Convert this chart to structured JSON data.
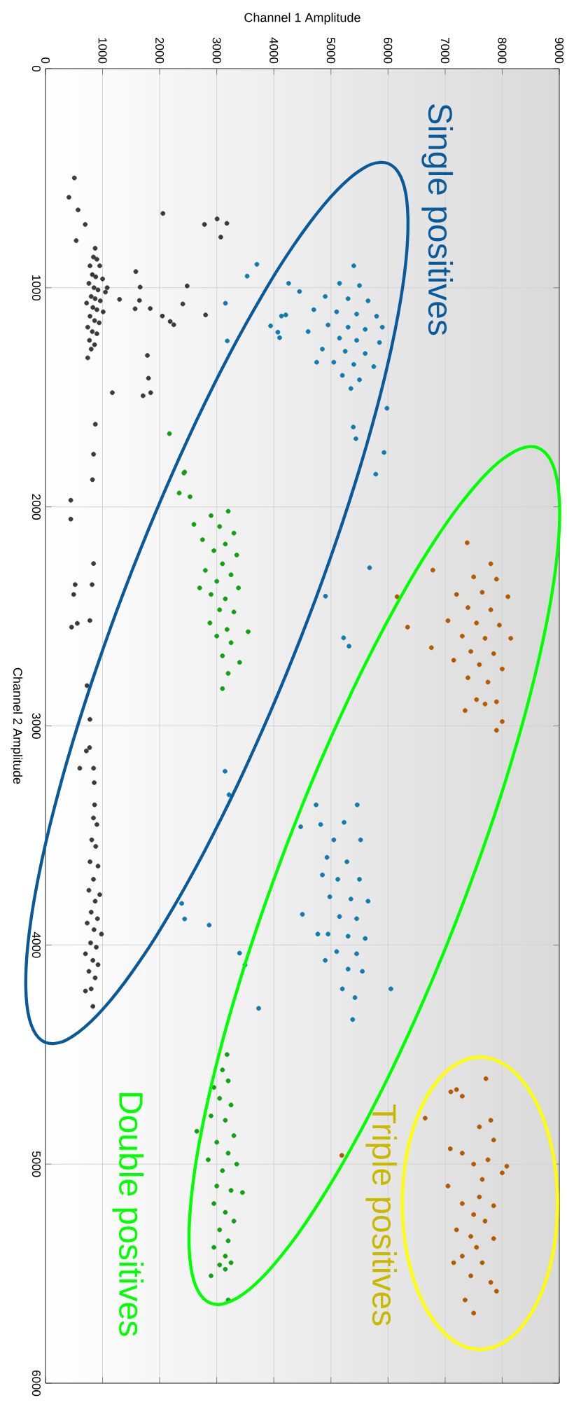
{
  "chart_data": {
    "type": "scatter",
    "xlabel": "Channel 1 Amplitude",
    "ylabel": "Channel 2 Amplitude",
    "annotations": [
      "Single positives",
      "Double positives",
      "Triple positives"
    ],
    "xlim": [
      0,
      9000
    ],
    "ylim": [
      6000,
      0
    ],
    "xticks": [
      0,
      1000,
      2000,
      3000,
      4000,
      5000,
      6000,
      7000,
      8000,
      9000
    ],
    "yticks": [
      0,
      1000,
      2000,
      3000,
      4000,
      5000,
      6000
    ],
    "grid": true,
    "series": [
      {
        "color": "#3a3a3a",
        "values": [
          499,
          587,
          645,
          711,
          785,
          661,
          711,
          686,
          706,
          769,
          926,
          997,
          992,
          1053,
          1058,
          1095,
          1096,
          1074,
          1124,
          1129,
          1154,
          1169,
          1309,
          1413,
          1479,
          1493,
          1479,
          1623,
          1760,
          1876,
          1970,
          2056,
          2259,
          2355,
          2400,
          2355,
          2549,
          2532,
          2519,
          2816,
          2970,
          3099,
          3114,
          3193,
          3193,
          3259,
          820,
          860,
          870,
          900,
          900,
          940,
          950,
          960,
          980,
          1000,
          1010,
          1020,
          1040,
          1050,
          1060,
          1070,
          1090,
          1100,
          1110,
          1130,
          1150,
          1160,
          1180,
          1200,
          1210,
          1240,
          1260,
          1280,
          1320,
          1000,
          3360,
          3420,
          3450,
          3520,
          3550,
          3620,
          3640,
          3700,
          3750,
          3770,
          3800,
          3850,
          3880,
          3900,
          3930,
          3950,
          3990,
          4010,
          4040,
          4070,
          4090,
          4120,
          4150,
          4200,
          4210,
          4280
        ],
        "x": [
          506,
          410,
          570,
          696,
          538,
          2057,
          2785,
          3006,
          3177,
          3070,
          1582,
          1658,
          2481,
          1297,
          1646,
          1835,
          1570,
          2405,
          2804,
          2047,
          2184,
          2247,
          1785,
          1804,
          1171,
          1709,
          1842,
          873,
          842,
          823,
          443,
          443,
          842,
          519,
          494,
          816,
          456,
          557,
          778,
          728,
          778,
          772,
          715,
          601,
          842,
          854,
          870,
          840,
          900,
          780,
          950,
          820,
          880,
          1000,
          760,
          850,
          920,
          1050,
          800,
          870,
          960,
          720,
          830,
          900,
          1010,
          780,
          860,
          940,
          740,
          820,
          900,
          770,
          860,
          800,
          740,
          1080,
          860,
          840,
          900,
          810,
          880,
          780,
          920,
          840,
          760,
          950,
          870,
          800,
          910,
          730,
          850,
          980,
          790,
          890,
          700,
          830,
          920,
          760,
          870,
          800,
          700,
          830
        ]
      },
      {
        "color": "#0f7cad",
        "values": [
          893,
          947,
          1071,
          1243,
          980,
          1017,
          1129,
          1124,
          1174,
          1203,
          1228,
          1550,
          1636,
          1689,
          1752,
          1851,
          2278,
          2408,
          2598,
          2636,
          3810,
          3881,
          3909,
          4037,
          4091,
          4289,
          3207,
          3314,
          900,
          980,
          990,
          1040,
          1050,
          1060,
          1100,
          1110,
          1120,
          1130,
          1170,
          1180,
          1190,
          1200,
          1230,
          1240,
          1250,
          1280,
          1290,
          1300,
          1340,
          1350,
          1360,
          1400,
          1420,
          1460,
          1340,
          1180,
          3360,
          3360,
          3460,
          3440,
          3450,
          3520,
          3520,
          3600,
          3620,
          3680,
          3700,
          3700,
          3780,
          3790,
          3800,
          3860,
          3870,
          3880,
          3950,
          3960,
          3970,
          4030,
          4040,
          4070,
          4110,
          4120,
          4200,
          4240,
          4200,
          4340,
          3950
        ],
        "x": [
          3703,
          3532,
          3152,
          3184,
          4259,
          4449,
          4133,
          4209,
          3943,
          4070,
          4101,
          5981,
          5392,
          5437,
          5930,
          5785,
          5677,
          4905,
          5222,
          5317,
          2386,
          2437,
          2867,
          3399,
          3494,
          3734,
          3145,
          3215,
          5400,
          5150,
          5500,
          4900,
          5300,
          5650,
          4700,
          5100,
          5450,
          5800,
          4950,
          5300,
          5600,
          4600,
          5150,
          5450,
          5850,
          4850,
          5250,
          5600,
          5050,
          5400,
          5750,
          5200,
          5500,
          5350,
          4750,
          5900,
          4740,
          5460,
          4470,
          5230,
          4820,
          5050,
          5520,
          4930,
          5280,
          4850,
          5120,
          5500,
          4980,
          5350,
          5650,
          4500,
          5150,
          5450,
          4950,
          5300,
          5600,
          5100,
          5450,
          4900,
          5300,
          5550,
          5200,
          5420,
          6050,
          5380,
          4770
        ]
      },
      {
        "color": "#12a012",
        "values": [
          1666,
          1841,
          1937,
          1954,
          1846,
          2020,
          2040,
          2080,
          2090,
          2120,
          2150,
          2170,
          2200,
          2220,
          2260,
          2290,
          2310,
          2340,
          2370,
          2400,
          2420,
          2470,
          2480,
          2530,
          2560,
          2570,
          2590,
          2620,
          2680,
          2710,
          2760,
          2830,
          2370,
          4500,
          4570,
          4620,
          4650,
          4700,
          4730,
          4780,
          4800,
          4850,
          4870,
          4900,
          4950,
          4980,
          5000,
          5030,
          5100,
          5120,
          5130,
          5180,
          5220,
          5260,
          5300,
          5350,
          5380,
          5420,
          5450,
          5460,
          5510,
          5480,
          5620
        ],
        "x": [
          2171,
          2437,
          2342,
          2532,
          2424,
          3200,
          2900,
          2600,
          3050,
          3300,
          2750,
          3150,
          2950,
          3350,
          3100,
          2800,
          3250,
          3000,
          3380,
          2900,
          3150,
          3050,
          3300,
          2880,
          3180,
          3550,
          3000,
          3250,
          3100,
          3400,
          3200,
          3100,
          2700,
          3180,
          3100,
          3200,
          2950,
          3050,
          3250,
          2900,
          3150,
          2650,
          3300,
          3000,
          3200,
          2850,
          3350,
          3100,
          3000,
          3250,
          3450,
          2950,
          3150,
          3300,
          3050,
          3200,
          2950,
          3150,
          3250,
          3050,
          2900,
          3150,
          3200
        ]
      },
      {
        "color": "#b35900",
        "values": [
          2164,
          2289,
          2410,
          2549,
          2643,
          4960,
          2260,
          2320,
          2330,
          2400,
          2390,
          2410,
          2460,
          2470,
          2520,
          2530,
          2540,
          2590,
          2600,
          2600,
          2660,
          2670,
          2700,
          2720,
          2740,
          2780,
          2800,
          2880,
          2890,
          2930,
          2980,
          3020,
          2900,
          4610,
          4670,
          4660,
          4690,
          4790,
          4800,
          4830,
          4930,
          4890,
          4950,
          4980,
          5000,
          5010,
          5040,
          5070,
          5100,
          5150,
          5180,
          5190,
          5230,
          5260,
          5300,
          5330,
          5340,
          5380,
          5420,
          5450,
          5450,
          5510,
          5540,
          5620,
          5680,
          5580
        ],
        "x": [
          7386,
          6785,
          6158,
          6342,
          6759,
          5190,
          7800,
          7500,
          7900,
          7200,
          7650,
          8100,
          7400,
          7800,
          7050,
          7550,
          7950,
          7300,
          7700,
          8150,
          7450,
          7850,
          7150,
          7600,
          8000,
          7400,
          7750,
          7550,
          7900,
          7350,
          8000,
          7900,
          7700,
          7715,
          7100,
          7200,
          7300,
          6650,
          7800,
          7600,
          7090,
          7850,
          7300,
          7750,
          7500,
          8080,
          8000,
          7650,
          7050,
          7600,
          7300,
          7850,
          7500,
          7700,
          7200,
          7450,
          7850,
          7550,
          7300,
          7650,
          7150,
          7450,
          7800,
          7350,
          7500,
          7900
        ]
      }
    ]
  }
}
